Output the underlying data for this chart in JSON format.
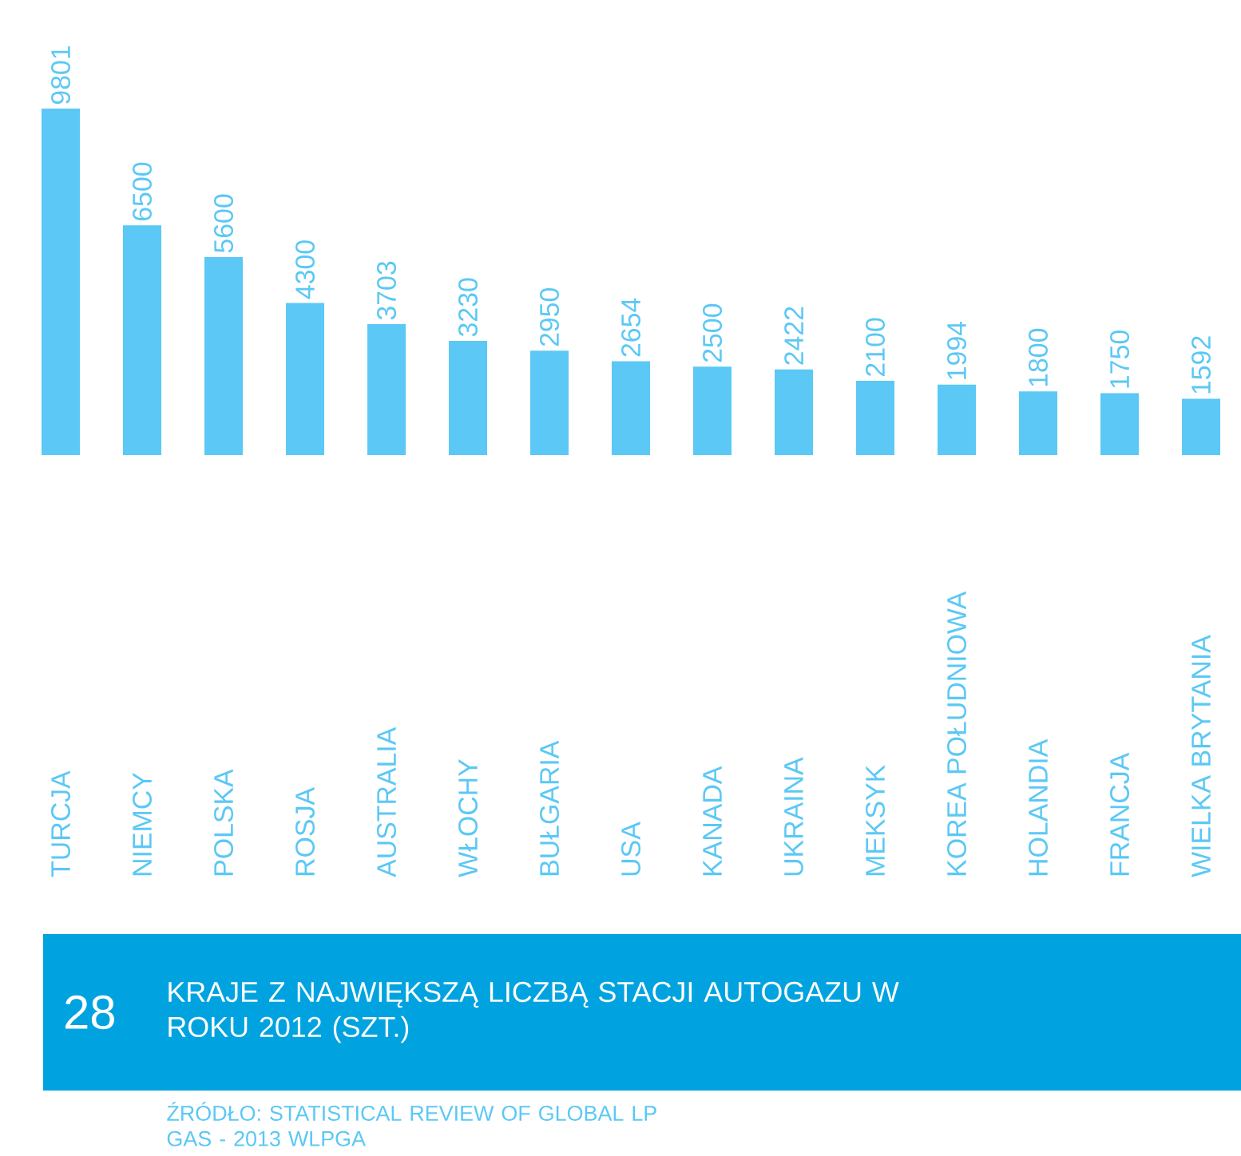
{
  "chart_data": {
    "type": "bar",
    "title": "KRAJE Z NAJWIĘKSZĄ LICZBĄ STACJI AUTOGAZU W ROKU 2012 (SZT.)",
    "categories": [
      "TURCJA",
      "NIEMCY",
      "POLSKA",
      "ROSJA",
      "AUSTRALIA",
      "WŁOCHY",
      "BUŁGARIA",
      "USA",
      "KANADA",
      "UKRAINA",
      "MEKSYK",
      "KOREA POŁUDNIOWA",
      "HOLANDIA",
      "FRANCJA",
      "WIELKA BRYTANIA"
    ],
    "values": [
      9801,
      6500,
      5600,
      4300,
      3703,
      3230,
      2950,
      2654,
      2500,
      2422,
      2100,
      1994,
      1800,
      1750,
      1592
    ],
    "color": "#5bc8f5",
    "data_labels": true,
    "annotations": [
      "28",
      "ŹRÓDŁO: STATISTICAL REVIEW OF GLOBAL LP GAS - 2013 WLPGA"
    ]
  }
}
